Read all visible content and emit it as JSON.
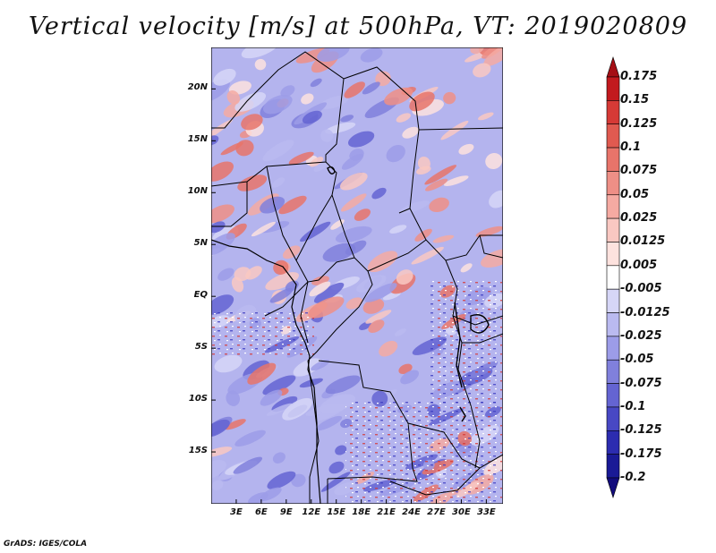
{
  "title": "Vertical velocity [m/s] at 500hPa, VT: 2019020809",
  "map": {
    "region": "Central and Southern Africa",
    "lon_range_deg": [
      0,
      35
    ],
    "lat_range_deg": [
      -20,
      24
    ],
    "lat_labels": [
      "20N",
      "15N",
      "10N",
      "5N",
      "EQ",
      "5S",
      "10S",
      "15S"
    ],
    "lat_values": [
      20,
      15,
      10,
      5,
      0,
      -5,
      -10,
      -15
    ],
    "lon_labels": [
      "3E",
      "6E",
      "9E",
      "12E",
      "15E",
      "18E",
      "21E",
      "24E",
      "27E",
      "30E",
      "33E"
    ],
    "lon_values": [
      3,
      6,
      9,
      12,
      15,
      18,
      21,
      24,
      27,
      30,
      33
    ]
  },
  "colorbar": {
    "labels": [
      "0.175",
      "0.15",
      "0.125",
      "0.1",
      "0.075",
      "0.05",
      "0.025",
      "0.0125",
      "0.005",
      "-0.005",
      "-0.0125",
      "-0.025",
      "-0.05",
      "-0.075",
      "-0.1",
      "-0.125",
      "-0.175",
      "-0.2"
    ],
    "colors": [
      "#a50f15",
      "#c21a1e",
      "#d63a36",
      "#e05a50",
      "#e8746a",
      "#ee8f86",
      "#f5aaa2",
      "#f9c8c2",
      "#fde2de",
      "#ffffff",
      "#d6d6f7",
      "#babaf0",
      "#9c9ce8",
      "#8080dc",
      "#6464d2",
      "#4848c4",
      "#2c2cb0",
      "#1a1a96",
      "#120c7c"
    ],
    "units": "m/s"
  },
  "footer": "GrADS: IGES/COLA"
}
